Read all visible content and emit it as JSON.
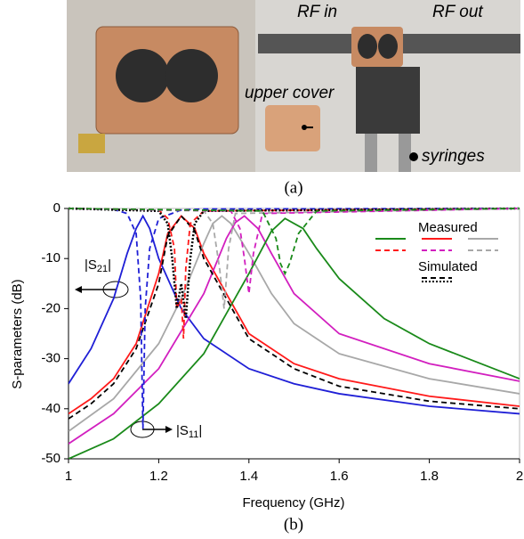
{
  "photo": {
    "labels": [
      "RF in",
      "RF out",
      "upper cover",
      "syringes"
    ],
    "caption": "(a)"
  },
  "caption": "(b)",
  "chart_data": {
    "type": "line",
    "xlabel": "Frequency (GHz)",
    "ylabel": "S-parameters (dB)",
    "xlim": [
      1,
      2
    ],
    "xticks": [
      1,
      1.2,
      1.4,
      1.6,
      1.8,
      2
    ],
    "ylim": [
      -50,
      0
    ],
    "yticks": [
      0,
      -10,
      -20,
      -30,
      -40,
      -50
    ],
    "legend_texts": [
      "Measured",
      "Simulated"
    ],
    "annotations": [
      {
        "text": "|S",
        "sub": "21",
        "end": "|"
      },
      {
        "text": "|S",
        "sub": "11",
        "end": "|"
      }
    ],
    "series": [
      {
        "color": "#1f1fd6",
        "dash": "solid",
        "x": [
          1,
          1.05,
          1.1,
          1.13,
          1.15,
          1.165,
          1.18,
          1.2,
          1.25,
          1.3,
          1.4,
          1.5,
          1.6,
          1.8,
          2.0
        ],
        "values": [
          -35,
          -28,
          -18,
          -9,
          -4,
          -1.5,
          -4,
          -10,
          -20,
          -26,
          -32,
          -35,
          -37,
          -39.5,
          -41
        ]
      },
      {
        "color": "#ff1a1a",
        "dash": "solid",
        "x": [
          1,
          1.05,
          1.1,
          1.15,
          1.2,
          1.22,
          1.25,
          1.28,
          1.3,
          1.35,
          1.4,
          1.5,
          1.6,
          1.8,
          2.0
        ],
        "values": [
          -41,
          -38,
          -34,
          -27,
          -13,
          -5,
          -1.5,
          -4,
          -9,
          -17,
          -25,
          -31,
          -34,
          -37.5,
          -39.5
        ]
      },
      {
        "color": "#a8a8a8",
        "dash": "solid",
        "x": [
          1,
          1.1,
          1.2,
          1.25,
          1.3,
          1.32,
          1.34,
          1.36,
          1.4,
          1.45,
          1.5,
          1.6,
          1.8,
          2.0
        ],
        "values": [
          -44.5,
          -38,
          -27,
          -18,
          -7,
          -3,
          -1.5,
          -3,
          -9,
          -17,
          -23,
          -29,
          -34,
          -37
        ]
      },
      {
        "color": "#d21fbf",
        "dash": "solid",
        "x": [
          1,
          1.1,
          1.2,
          1.3,
          1.35,
          1.37,
          1.39,
          1.42,
          1.45,
          1.5,
          1.6,
          1.8,
          2.0
        ],
        "values": [
          -47,
          -41,
          -32,
          -17,
          -6,
          -2.8,
          -1.5,
          -4,
          -9,
          -17,
          -25,
          -31,
          -34.5
        ]
      },
      {
        "color": "#1a8a1a",
        "dash": "solid",
        "x": [
          1,
          1.1,
          1.2,
          1.3,
          1.4,
          1.45,
          1.48,
          1.52,
          1.55,
          1.6,
          1.7,
          1.8,
          2.0
        ],
        "values": [
          -50,
          -46,
          -39,
          -29,
          -13,
          -4.5,
          -2,
          -4,
          -8,
          -14,
          -22,
          -27,
          -34
        ]
      },
      {
        "color": "#000000",
        "dash": "dash",
        "x": [
          1,
          1.05,
          1.1,
          1.15,
          1.2,
          1.22,
          1.25,
          1.28,
          1.3,
          1.35,
          1.4,
          1.5,
          1.6,
          1.8,
          2.0
        ],
        "values": [
          -42,
          -39,
          -35,
          -28,
          -15,
          -5.5,
          -1.5,
          -4.5,
          -10,
          -18,
          -26,
          -32,
          -35.5,
          -38.5,
          -40
        ]
      },
      {
        "color": "#1f1fd6",
        "dash": "dash",
        "x": [
          1,
          1.1,
          1.13,
          1.15,
          1.16,
          1.165,
          1.17,
          1.18,
          1.2,
          1.25,
          1.3,
          2.0
        ],
        "values": [
          0,
          -0.2,
          -1,
          -5,
          -18,
          -44,
          -20,
          -8,
          -2,
          -0.3,
          -0.1,
          0
        ]
      },
      {
        "color": "#ff1a1a",
        "dash": "dash",
        "x": [
          1,
          1.2,
          1.22,
          1.235,
          1.24,
          1.25,
          1.255,
          1.26,
          1.27,
          1.3,
          2.0
        ],
        "values": [
          0,
          -0.3,
          -2,
          -8,
          -20,
          -18,
          -26,
          -12,
          -3,
          -0.5,
          0
        ]
      },
      {
        "color": "#000000",
        "dash": "dot",
        "x": [
          1,
          1.2,
          1.22,
          1.23,
          1.24,
          1.25,
          1.26,
          1.27,
          1.28,
          1.3,
          2.0
        ],
        "values": [
          0,
          -0.5,
          -3,
          -10,
          -20,
          -15,
          -22,
          -10,
          -3,
          -0.5,
          0
        ]
      },
      {
        "color": "#a8a8a8",
        "dash": "dash",
        "x": [
          1,
          1.3,
          1.32,
          1.335,
          1.345,
          1.355,
          1.37,
          2.0
        ],
        "values": [
          0,
          -0.5,
          -3,
          -12,
          -20,
          -8,
          -1,
          0
        ]
      },
      {
        "color": "#d21fbf",
        "dash": "dash",
        "x": [
          1,
          1.36,
          1.38,
          1.39,
          1.4,
          1.41,
          1.43,
          2.0
        ],
        "values": [
          0,
          -0.5,
          -4,
          -10,
          -17,
          -9,
          -1,
          0
        ]
      },
      {
        "color": "#1a8a1a",
        "dash": "dash",
        "x": [
          1,
          1.43,
          1.46,
          1.47,
          1.48,
          1.49,
          1.51,
          1.55,
          2.0
        ],
        "values": [
          0,
          -0.5,
          -6,
          -11,
          -13,
          -11,
          -5,
          -0.5,
          0
        ]
      }
    ]
  }
}
